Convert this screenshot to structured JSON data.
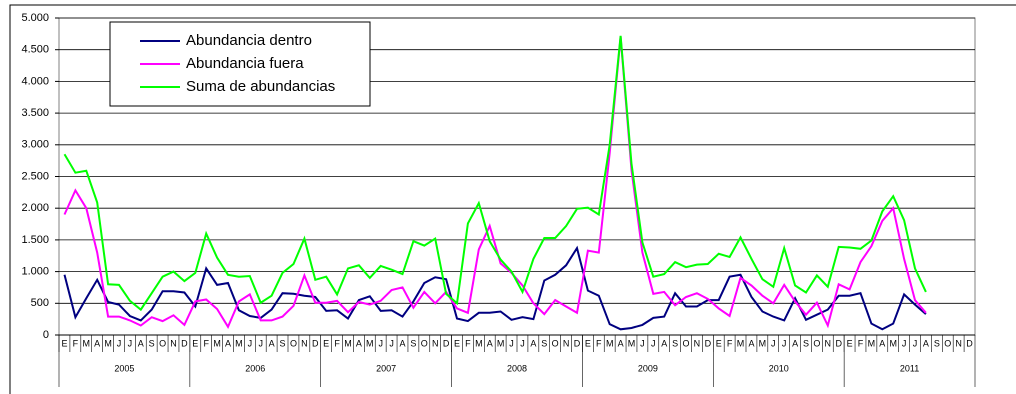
{
  "chart_data": {
    "type": "line",
    "categories": [
      "E",
      "F",
      "M",
      "A",
      "M",
      "J",
      "J",
      "A",
      "S",
      "O",
      "N",
      "D",
      "E",
      "F",
      "M",
      "A",
      "M",
      "J",
      "J",
      "A",
      "S",
      "O",
      "N",
      "D",
      "E",
      "F",
      "M",
      "A",
      "M",
      "J",
      "J",
      "A",
      "S",
      "O",
      "N",
      "D",
      "E",
      "F",
      "M",
      "A",
      "M",
      "J",
      "J",
      "A",
      "S",
      "O",
      "N",
      "D",
      "E",
      "F",
      "M",
      "A",
      "M",
      "J",
      "J",
      "A",
      "S",
      "O",
      "N",
      "D",
      "E",
      "F",
      "M",
      "A",
      "M",
      "J",
      "J",
      "A",
      "S",
      "O",
      "N",
      "D",
      "E",
      "F",
      "M",
      "A",
      "M",
      "J",
      "J",
      "A",
      "S",
      "O",
      "N",
      "D"
    ],
    "years": [
      "2005",
      "2006",
      "2007",
      "2008",
      "2009",
      "2010",
      "2011"
    ],
    "series": [
      {
        "name": "Abundancia dentro",
        "color": "#000080",
        "values": [
          950,
          280,
          580,
          870,
          520,
          480,
          300,
          230,
          400,
          690,
          690,
          670,
          450,
          1050,
          790,
          820,
          390,
          300,
          270,
          400,
          660,
          650,
          620,
          600,
          380,
          390,
          260,
          550,
          610,
          380,
          390,
          290,
          530,
          820,
          910,
          880,
          260,
          220,
          350,
          350,
          370,
          240,
          280,
          250,
          860,
          950,
          1100,
          1370,
          700,
          620,
          170,
          90,
          110,
          160,
          270,
          290,
          660,
          450,
          450,
          550,
          550,
          920,
          950,
          600,
          370,
          290,
          230,
          580,
          240,
          320,
          400,
          620,
          620,
          660,
          180,
          90,
          180,
          640,
          480,
          330,
          null,
          null,
          null,
          null
        ]
      },
      {
        "name": "Abundancia fuera",
        "color": "#ff00ff",
        "values": [
          1900,
          2280,
          2000,
          1300,
          290,
          290,
          230,
          150,
          280,
          220,
          310,
          160,
          530,
          560,
          410,
          130,
          530,
          640,
          230,
          230,
          290,
          460,
          940,
          510,
          510,
          540,
          360,
          520,
          480,
          540,
          710,
          750,
          430,
          680,
          500,
          680,
          420,
          350,
          1350,
          1720,
          1130,
          980,
          780,
          500,
          330,
          550,
          450,
          350,
          1330,
          1300,
          2870,
          4700,
          2600,
          1300,
          650,
          680,
          470,
          600,
          660,
          570,
          420,
          300,
          900,
          780,
          620,
          500,
          790,
          530,
          320,
          510,
          150,
          800,
          720,
          1150,
          1400,
          1800,
          2000,
          1200,
          550,
          350,
          null,
          null,
          null,
          null
        ]
      },
      {
        "name": "Suma de abundancias",
        "color": "#00ff00",
        "values": [
          2850,
          2560,
          2590,
          2090,
          800,
          790,
          540,
          400,
          660,
          920,
          1000,
          850,
          980,
          1600,
          1220,
          950,
          920,
          930,
          510,
          620,
          980,
          1120,
          1520,
          870,
          920,
          640,
          1050,
          1100,
          900,
          1090,
          1030,
          960,
          1480,
          1410,
          1520,
          650,
          500,
          1760,
          2080,
          1480,
          1190,
          1000,
          680,
          1200,
          1530,
          1530,
          1720,
          1990,
          2010,
          1900,
          3000,
          4720,
          2700,
          1460,
          920,
          960,
          1150,
          1070,
          1110,
          1120,
          1280,
          1230,
          1540,
          1200,
          880,
          760,
          1370,
          780,
          670,
          940,
          760,
          1390,
          1380,
          1360,
          1490,
          1950,
          2190,
          1810,
          1050,
          680,
          null,
          null,
          null,
          null
        ]
      }
    ],
    "ylim": [
      0,
      5000
    ],
    "yticks": [
      0,
      500,
      {
        "value": 1000,
        "label": "1.000"
      },
      {
        "value": 1500,
        "label": "1.500"
      },
      {
        "value": 2000,
        "label": "2.000"
      },
      {
        "value": 2500,
        "label": "2.500"
      },
      {
        "value": 3000,
        "label": "3.000"
      },
      {
        "value": 3500,
        "label": "3.500"
      },
      {
        "value": 4000,
        "label": "4.000"
      },
      {
        "value": 4500,
        "label": "4.500"
      },
      {
        "value": 5000,
        "label": "5.000"
      }
    ],
    "grid": true,
    "legend": "top-left"
  }
}
